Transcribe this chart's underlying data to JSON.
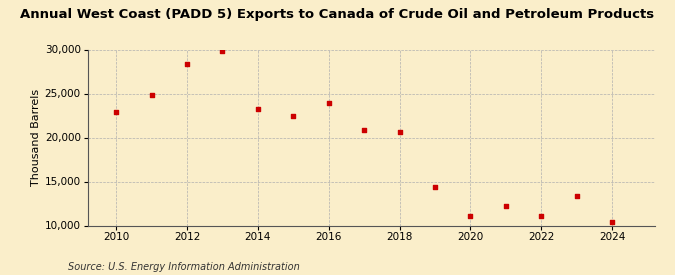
{
  "title": "Annual West Coast (PADD 5) Exports to Canada of Crude Oil and Petroleum Products",
  "ylabel": "Thousand Barrels",
  "source": "Source: U.S. Energy Information Administration",
  "background_color": "#faeeca",
  "marker_color": "#cc0000",
  "years": [
    2010,
    2011,
    2012,
    2013,
    2014,
    2015,
    2016,
    2017,
    2018,
    2019,
    2020,
    2021,
    2022,
    2023,
    2024
  ],
  "values": [
    22900,
    24800,
    28400,
    29850,
    23200,
    22500,
    23900,
    20900,
    20600,
    14400,
    11100,
    12200,
    11100,
    13300,
    10400
  ],
  "ylim": [
    10000,
    30000
  ],
  "yticks": [
    10000,
    15000,
    20000,
    25000,
    30000
  ],
  "xticks": [
    2010,
    2012,
    2014,
    2016,
    2018,
    2020,
    2022,
    2024
  ],
  "title_fontsize": 9.5,
  "ylabel_fontsize": 8,
  "tick_fontsize": 7.5,
  "source_fontsize": 7
}
